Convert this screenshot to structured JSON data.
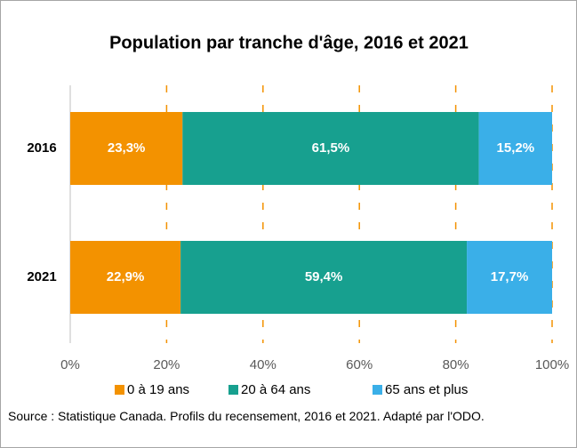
{
  "chart_data": {
    "type": "stacked_barh",
    "title": "Population par tranche d'âge, 2016 et 2021",
    "categories": [
      "2016",
      "2021"
    ],
    "series": [
      {
        "name": "0 à 19 ans",
        "color": "#f39200",
        "values": [
          23.3,
          22.9
        ],
        "value_labels": [
          "23,3%",
          "22,9%"
        ]
      },
      {
        "name": "20 à 64 ans",
        "color": "#17a08f",
        "values": [
          61.5,
          59.4
        ],
        "value_labels": [
          "61,5%",
          "59,4%"
        ]
      },
      {
        "name": "65 ans et plus",
        "color": "#3aafe8",
        "values": [
          15.2,
          17.7
        ],
        "value_labels": [
          "15,2%",
          "17,7%"
        ]
      }
    ],
    "xlim": [
      0,
      100
    ],
    "xticks": [
      {
        "value": 0,
        "label": "0%"
      },
      {
        "value": 20,
        "label": "20%"
      },
      {
        "value": 40,
        "label": "40%"
      },
      {
        "value": 60,
        "label": "60%"
      },
      {
        "value": 80,
        "label": "80%"
      },
      {
        "value": 100,
        "label": "100%"
      }
    ],
    "grid": true,
    "legend": "bottom",
    "source": "Source : Statistique Canada. Profils du recensement, 2016 et 2021. Adapté par l'ODO."
  }
}
